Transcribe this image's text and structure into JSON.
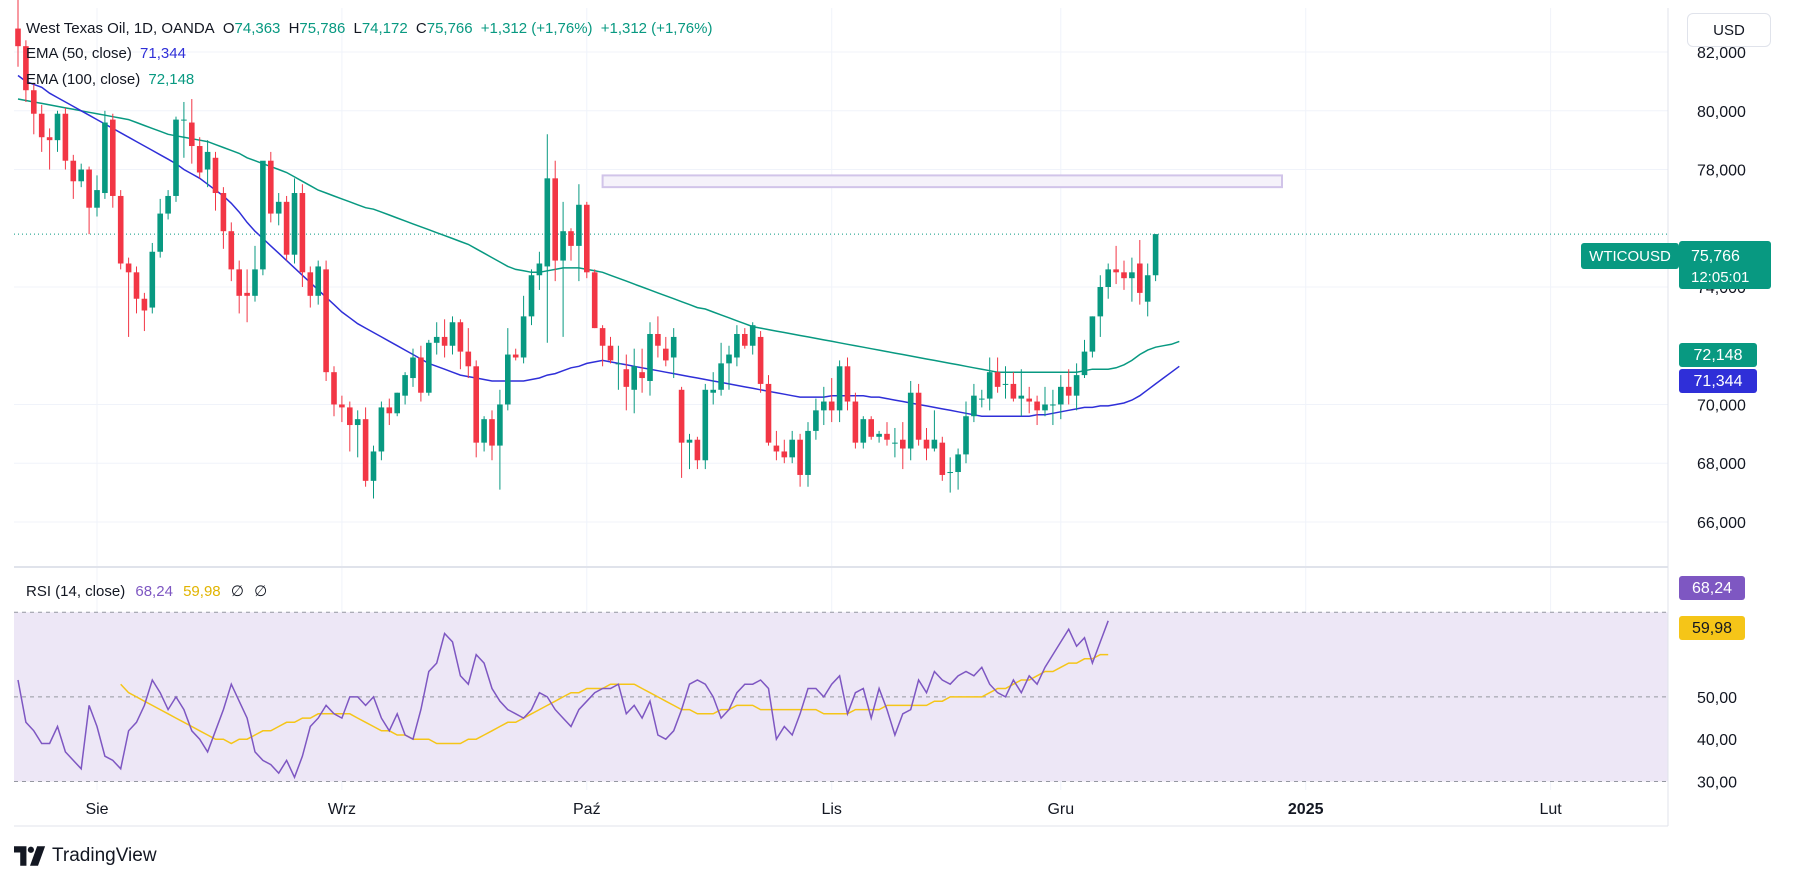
{
  "header": {
    "symbol_title": "West Texas Oil, 1D, OANDA",
    "ohlc": {
      "o_label": "O",
      "o_value": "74,363",
      "h_label": "H",
      "h_value": "75,786",
      "l_label": "L",
      "l_value": "74,172",
      "c_label": "C",
      "c_value": "75,766",
      "change": "+1,312 (+1,76%)",
      "change2": "+1,312 (+1,76%)"
    },
    "ema50_label": "EMA (50, close)",
    "ema50_value": "71,344",
    "ema100_label": "EMA (100, close)",
    "ema100_value": "72,148",
    "currency_button": "USD"
  },
  "rsi_legend": {
    "label": "RSI (14, close)",
    "rsi_value": "68,24",
    "ma_value": "59,98",
    "null1": "∅",
    "null2": "∅"
  },
  "badges": {
    "ticker": "WTICOUSD",
    "price": "75,766",
    "countdown": "12:05:01",
    "ema100": "72,148",
    "ema50": "71,344",
    "rsi": "68,24",
    "rsi_ma": "59,98"
  },
  "colors": {
    "up": "#089981",
    "down": "#f23645",
    "ema50": "#2f2fd8",
    "ema100": "#089981",
    "rsi": "#7e57c2",
    "rsi_ma": "#f5c518",
    "rsi_band": "#ede7f6",
    "zone": "#d1c4e9"
  },
  "brand": "TradingView",
  "chart_data": {
    "type": "candlestick",
    "ylim": [
      64500,
      83500
    ],
    "y_ticks": [
      "82,000",
      "80,000",
      "78,000",
      "74,000",
      "70,000",
      "68,000",
      "66,000"
    ],
    "y_tick_values": [
      82000,
      80000,
      78000,
      74000,
      70000,
      68000,
      66000
    ],
    "x_labels": [
      "Sie",
      "Wrz",
      "Paź",
      "Lis",
      "Gru",
      "2025",
      "Lut"
    ],
    "x_label_index": [
      10,
      41,
      72,
      103,
      132,
      163,
      194
    ],
    "candles": [
      [
        82800,
        83800,
        81500,
        82200
      ],
      [
        82200,
        82400,
        80300,
        80700
      ],
      [
        80700,
        80900,
        79200,
        79900
      ],
      [
        79900,
        80200,
        78600,
        79100
      ],
      [
        79100,
        79400,
        78000,
        79000
      ],
      [
        79000,
        80000,
        78600,
        79900
      ],
      [
        79900,
        80100,
        78000,
        78300
      ],
      [
        78300,
        78500,
        77000,
        77600
      ],
      [
        77600,
        78200,
        77400,
        78000
      ],
      [
        78000,
        78100,
        75800,
        76700
      ],
      [
        76700,
        77800,
        76400,
        77300
      ],
      [
        77200,
        80000,
        77000,
        79600
      ],
      [
        79700,
        79900,
        76700,
        77100
      ],
      [
        77100,
        77300,
        74600,
        74800
      ],
      [
        74800,
        75000,
        72300,
        74500
      ],
      [
        74500,
        74700,
        73100,
        73600
      ],
      [
        73600,
        73800,
        72500,
        73200
      ],
      [
        73300,
        75500,
        73100,
        75200
      ],
      [
        75200,
        77000,
        75000,
        76500
      ],
      [
        76500,
        77300,
        76300,
        77100
      ],
      [
        77100,
        79800,
        76900,
        79700
      ],
      [
        79700,
        80300,
        78400,
        79700
      ],
      [
        79600,
        80400,
        78200,
        78800
      ],
      [
        78800,
        79100,
        77700,
        77900
      ],
      [
        78000,
        79000,
        77400,
        78600
      ],
      [
        78400,
        78600,
        76600,
        77200
      ],
      [
        77200,
        77400,
        75300,
        75900
      ],
      [
        75900,
        76200,
        74200,
        74600
      ],
      [
        74600,
        74900,
        73100,
        73700
      ],
      [
        73800,
        74600,
        72800,
        73700
      ],
      [
        73700,
        75400,
        73500,
        74600
      ],
      [
        74600,
        78200,
        74400,
        78300
      ],
      [
        78300,
        78600,
        76200,
        76500
      ],
      [
        76500,
        77200,
        76100,
        76900
      ],
      [
        76900,
        77100,
        74900,
        75100
      ],
      [
        75100,
        77700,
        74800,
        77200
      ],
      [
        77200,
        77500,
        74000,
        74500
      ],
      [
        74500,
        74700,
        73300,
        73700
      ],
      [
        73700,
        74900,
        73400,
        74700
      ],
      [
        74600,
        74900,
        70800,
        71100
      ],
      [
        71100,
        71300,
        69600,
        70000
      ],
      [
        70000,
        70300,
        69400,
        69900
      ],
      [
        69900,
        70100,
        68400,
        69300
      ],
      [
        69300,
        69800,
        68200,
        69500
      ],
      [
        69500,
        69900,
        67200,
        67400
      ],
      [
        67400,
        68600,
        66800,
        68400
      ],
      [
        68400,
        70100,
        68100,
        69900
      ],
      [
        69900,
        70200,
        69300,
        69700
      ],
      [
        69700,
        70400,
        69600,
        70400
      ],
      [
        70300,
        71100,
        70000,
        71000
      ],
      [
        70900,
        71900,
        70600,
        71600
      ],
      [
        71600,
        72000,
        70100,
        70400
      ],
      [
        70400,
        72200,
        70300,
        72100
      ],
      [
        72100,
        72800,
        71700,
        72300
      ],
      [
        72300,
        72900,
        71600,
        72000
      ],
      [
        72000,
        73000,
        71700,
        72800
      ],
      [
        72800,
        72900,
        71200,
        71800
      ],
      [
        71800,
        72600,
        70900,
        71300
      ],
      [
        71300,
        71500,
        68200,
        68700
      ],
      [
        68700,
        69600,
        68400,
        69500
      ],
      [
        69500,
        69800,
        68100,
        68600
      ],
      [
        68600,
        70500,
        67100,
        70000
      ],
      [
        70000,
        72600,
        69800,
        71700
      ],
      [
        71700,
        71900,
        71500,
        71600
      ],
      [
        71600,
        73700,
        71400,
        73000
      ],
      [
        73000,
        74600,
        72700,
        74400
      ],
      [
        74400,
        75200,
        73900,
        74800
      ],
      [
        74700,
        79200,
        72100,
        77700
      ],
      [
        77700,
        78300,
        74200,
        74900
      ],
      [
        74900,
        76900,
        72300,
        75900
      ],
      [
        75900,
        76000,
        74900,
        75400
      ],
      [
        75400,
        77500,
        74200,
        76800
      ],
      [
        76800,
        76900,
        74300,
        74500
      ],
      [
        74500,
        74600,
        72600,
        72600
      ],
      [
        72600,
        72700,
        71300,
        72000
      ],
      [
        72000,
        72300,
        71400,
        71500
      ],
      [
        71400,
        72000,
        70500,
        71400
      ],
      [
        71200,
        71700,
        69800,
        70600
      ],
      [
        70500,
        71900,
        69700,
        71300
      ],
      [
        71100,
        71900,
        70400,
        70900
      ],
      [
        70800,
        72800,
        70300,
        72400
      ],
      [
        72400,
        73000,
        71600,
        72000
      ],
      [
        71900,
        72300,
        71300,
        71500
      ],
      [
        71600,
        72600,
        70900,
        72300
      ],
      [
        70500,
        70600,
        67500,
        68700
      ],
      [
        68700,
        69000,
        67800,
        68800
      ],
      [
        68800,
        68900,
        67800,
        68100
      ],
      [
        68100,
        70700,
        67800,
        70500
      ],
      [
        70400,
        71100,
        70000,
        70500
      ],
      [
        70500,
        72100,
        70300,
        71400
      ],
      [
        71400,
        72000,
        70500,
        71700
      ],
      [
        71600,
        72700,
        71300,
        72400
      ],
      [
        72400,
        72600,
        71900,
        72000
      ],
      [
        72000,
        72800,
        71700,
        72700
      ],
      [
        72300,
        72500,
        70400,
        70700
      ],
      [
        70700,
        71000,
        68600,
        68700
      ],
      [
        68600,
        69100,
        68100,
        68400
      ],
      [
        68400,
        68800,
        68000,
        68200
      ],
      [
        68200,
        69100,
        68000,
        68800
      ],
      [
        68800,
        69000,
        67200,
        67600
      ],
      [
        67600,
        69400,
        67200,
        69100
      ],
      [
        69100,
        70200,
        68800,
        69800
      ],
      [
        69800,
        70600,
        69300,
        70100
      ],
      [
        70100,
        70900,
        69400,
        69800
      ],
      [
        69800,
        71500,
        69400,
        71300
      ],
      [
        71300,
        71600,
        69800,
        70100
      ],
      [
        70100,
        70400,
        68500,
        68700
      ],
      [
        68700,
        69600,
        68500,
        69500
      ],
      [
        69500,
        69600,
        68800,
        68900
      ],
      [
        68900,
        69100,
        68700,
        69000
      ],
      [
        69000,
        69400,
        68600,
        68800
      ],
      [
        68700,
        69200,
        68200,
        68700
      ],
      [
        68800,
        69400,
        67800,
        68500
      ],
      [
        68500,
        70800,
        68100,
        70400
      ],
      [
        70400,
        70700,
        68600,
        68800
      ],
      [
        68800,
        69200,
        68100,
        68500
      ],
      [
        68500,
        69800,
        68400,
        68800
      ],
      [
        68700,
        68900,
        67400,
        67600
      ],
      [
        67700,
        68200,
        67000,
        67700
      ],
      [
        67700,
        68500,
        67100,
        68300
      ],
      [
        68300,
        70100,
        68000,
        69600
      ],
      [
        69600,
        70700,
        69400,
        70300
      ],
      [
        70200,
        70500,
        69900,
        70200
      ],
      [
        70200,
        71600,
        69800,
        71100
      ],
      [
        71100,
        71600,
        70400,
        70600
      ],
      [
        70700,
        71300,
        70200,
        70700
      ],
      [
        70700,
        71100,
        70100,
        70200
      ],
      [
        70200,
        71200,
        69600,
        70300
      ],
      [
        70200,
        70600,
        69700,
        70100
      ],
      [
        70100,
        70300,
        69300,
        69800
      ],
      [
        69800,
        70600,
        69600,
        70000
      ],
      [
        70000,
        70500,
        69300,
        70000
      ],
      [
        70000,
        71000,
        69500,
        70600
      ],
      [
        70600,
        71200,
        70000,
        70300
      ],
      [
        70300,
        71400,
        69800,
        71000
      ],
      [
        71000,
        72200,
        70900,
        71800
      ],
      [
        71800,
        73000,
        71600,
        73000
      ],
      [
        73000,
        74400,
        72300,
        74000
      ],
      [
        74000,
        74800,
        73600,
        74600
      ],
      [
        74600,
        75400,
        74100,
        74500
      ],
      [
        74500,
        74900,
        73900,
        74300
      ],
      [
        74300,
        75000,
        73500,
        74500
      ],
      [
        74800,
        75600,
        73400,
        73800
      ],
      [
        73500,
        74800,
        73000,
        74400
      ],
      [
        74400,
        75800,
        74200,
        75800
      ]
    ],
    "ema50": [
      81200,
      81000,
      80900,
      80800,
      80600,
      80450,
      80300,
      80150,
      80000,
      79850,
      79700,
      79550,
      79400,
      79250,
      79100,
      78950,
      78800,
      78650,
      78500,
      78350,
      78200,
      78000,
      77850,
      77700,
      77500,
      77300,
      77100,
      76850,
      76550,
      76200,
      75900,
      75650,
      75400,
      75150,
      74900,
      74650,
      74400,
      74150,
      73900,
      73650,
      73400,
      73150,
      72950,
      72750,
      72600,
      72450,
      72300,
      72150,
      72000,
      71850,
      71700,
      71550,
      71400,
      71300,
      71200,
      71100,
      71000,
      70950,
      70900,
      70850,
      70800,
      70800,
      70800,
      70800,
      70800,
      70850,
      70900,
      71000,
      71050,
      71150,
      71250,
      71300,
      71400,
      71450,
      71500,
      71450,
      71400,
      71350,
      71300,
      71250,
      71200,
      71150,
      71100,
      71050,
      71000,
      70950,
      70900,
      70850,
      70800,
      70750,
      70700,
      70650,
      70600,
      70550,
      70500,
      70450,
      70400,
      70350,
      70300,
      70250,
      70250,
      70250,
      70250,
      70300,
      70300,
      70300,
      70300,
      70300,
      70250,
      70250,
      70200,
      70150,
      70100,
      70050,
      70000,
      69950,
      69900,
      69850,
      69800,
      69750,
      69700,
      69650,
      69600,
      69600,
      69600,
      69600,
      69600,
      69600,
      69600,
      69650,
      69650,
      69700,
      69750,
      69800,
      69850,
      69900,
      69900,
      69950,
      69950,
      70000,
      70050,
      70150,
      70300,
      70500,
      70700,
      70900,
      71100,
      71300
    ],
    "ema100": [
      80400,
      80350,
      80300,
      80250,
      80200,
      80150,
      80100,
      80050,
      80000,
      79950,
      79900,
      79850,
      79800,
      79750,
      79700,
      79600,
      79500,
      79400,
      79300,
      79200,
      79150,
      79100,
      79050,
      79000,
      78950,
      78850,
      78750,
      78650,
      78550,
      78400,
      78300,
      78200,
      78100,
      78000,
      77900,
      77750,
      77600,
      77450,
      77300,
      77200,
      77100,
      77000,
      76900,
      76800,
      76700,
      76650,
      76550,
      76450,
      76350,
      76250,
      76150,
      76050,
      75950,
      75850,
      75750,
      75650,
      75550,
      75450,
      75300,
      75150,
      75000,
      74850,
      74700,
      74600,
      74550,
      74500,
      74500,
      74550,
      74600,
      74650,
      74650,
      74650,
      74600,
      74550,
      74500,
      74400,
      74300,
      74200,
      74100,
      74000,
      73900,
      73800,
      73700,
      73600,
      73500,
      73400,
      73300,
      73250,
      73150,
      73050,
      72950,
      72850,
      72750,
      72650,
      72600,
      72550,
      72500,
      72450,
      72400,
      72350,
      72300,
      72250,
      72200,
      72150,
      72100,
      72050,
      72000,
      71950,
      71900,
      71850,
      71800,
      71750,
      71700,
      71650,
      71600,
      71550,
      71500,
      71450,
      71400,
      71350,
      71300,
      71250,
      71200,
      71150,
      71100,
      71100,
      71100,
      71100,
      71100,
      71100,
      71100,
      71100,
      71100,
      71100,
      71100,
      71150,
      71200,
      71200,
      71200,
      71250,
      71350,
      71500,
      71700,
      71850,
      71950,
      72000,
      72050,
      72148
    ],
    "zone": {
      "from_index": 74,
      "to_index": 160,
      "low": 77400,
      "high": 77800
    },
    "rsi_ylim": [
      28,
      80
    ],
    "rsi_ticks": [
      "50,00",
      "40,00",
      "30,00"
    ],
    "rsi_tick_values": [
      50,
      40,
      30
    ],
    "rsi_band": [
      30,
      70
    ],
    "rsi": [
      54,
      44,
      42,
      39,
      39,
      43,
      37,
      35,
      33,
      48,
      43,
      36,
      35,
      33,
      42,
      44,
      48,
      54,
      51,
      47,
      50,
      47,
      42,
      40,
      37,
      42,
      47,
      53,
      49,
      45,
      37,
      35,
      34,
      32,
      35,
      31,
      36,
      43,
      45,
      48,
      46,
      45,
      50,
      50,
      48,
      50,
      45,
      42,
      46,
      41,
      40,
      47,
      56,
      58,
      65,
      63,
      55,
      53,
      60,
      58,
      52,
      49,
      47,
      46,
      45,
      47,
      51,
      50,
      47,
      45,
      43,
      47,
      49,
      51,
      52,
      52,
      53,
      46,
      48,
      45,
      49,
      41,
      40,
      42,
      47,
      53,
      54,
      53,
      50,
      45,
      47,
      51,
      53,
      53,
      54,
      52,
      40,
      43,
      41,
      46,
      52,
      52,
      50,
      53,
      55,
      46,
      51,
      52,
      45,
      52,
      47,
      41,
      46,
      47,
      54,
      51,
      56,
      54,
      53,
      55,
      56,
      55,
      57,
      53,
      51,
      50,
      54,
      51,
      55,
      53,
      57,
      60,
      63,
      66,
      62,
      64,
      58,
      63,
      68
    ],
    "rsi_ma": [
      53,
      51,
      50,
      49,
      48,
      47,
      46,
      45,
      44,
      43,
      42,
      41,
      40,
      40,
      39,
      40,
      40,
      41,
      42,
      42,
      43,
      44,
      44,
      45,
      45,
      46,
      46,
      46,
      46,
      46,
      45,
      44,
      43,
      42,
      42,
      41,
      41,
      40,
      40,
      40,
      39,
      39,
      39,
      39,
      40,
      40,
      41,
      42,
      43,
      44,
      44,
      45,
      46,
      47,
      48,
      49,
      50,
      51,
      51,
      52,
      52,
      52,
      53,
      53,
      53,
      53,
      52,
      51,
      50,
      49,
      48,
      47,
      47,
      46,
      46,
      46,
      47,
      47,
      48,
      48,
      48,
      47,
      47,
      47,
      47,
      47,
      47,
      47,
      47,
      46,
      46,
      46,
      46,
      47,
      47,
      47,
      47,
      48,
      48,
      48,
      48,
      48,
      48,
      49,
      49,
      50,
      50,
      50,
      50,
      50,
      51,
      52,
      52,
      53,
      54,
      54,
      55,
      56,
      56,
      57,
      58,
      58,
      59,
      59,
      60,
      60
    ]
  }
}
